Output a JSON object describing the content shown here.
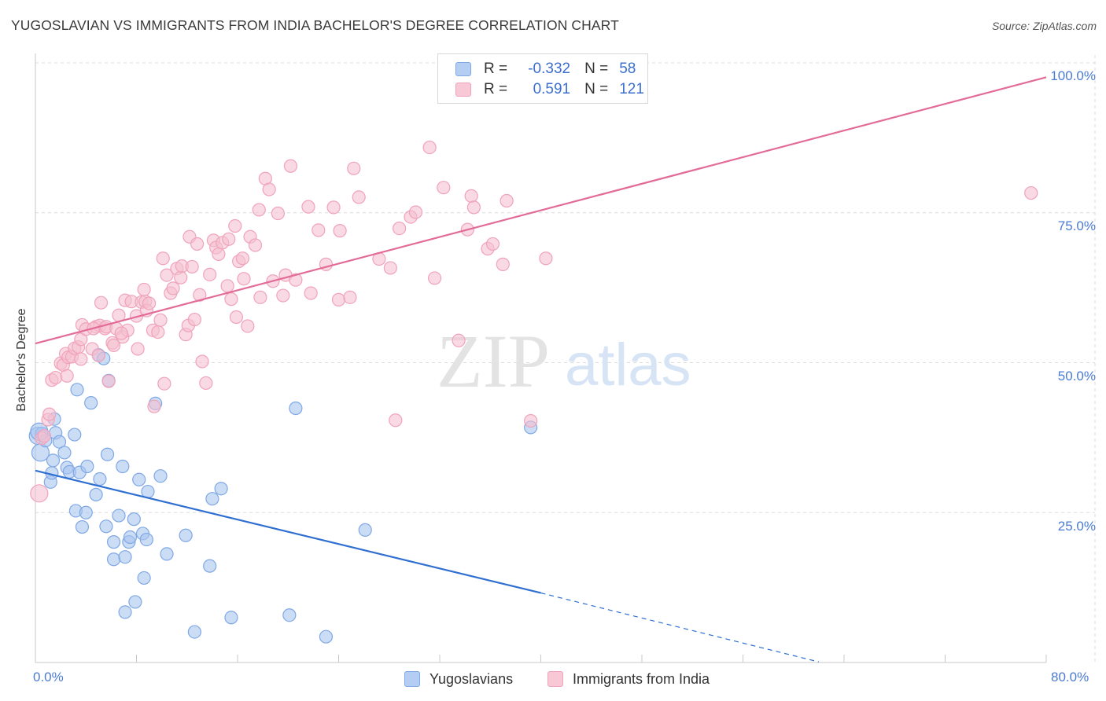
{
  "title": "YUGOSLAVIAN VS IMMIGRANTS FROM INDIA BACHELOR'S DEGREE CORRELATION CHART",
  "source": "Source: ZipAtlas.com",
  "watermark": {
    "zip": "ZIP",
    "atlas": "atlas"
  },
  "legend": {
    "rows": [
      {
        "r_label": "R =",
        "r_value": "-0.332",
        "n_label": "N =",
        "n_value": "58",
        "color": "#7fa8e6"
      },
      {
        "r_label": "R =",
        "r_value": "0.591",
        "n_label": "N =",
        "n_value": "121",
        "color": "#f3a6bf"
      }
    ]
  },
  "bottom_legend": {
    "yugoslavians": "Yugoslavians",
    "india": "Immigrants from India"
  },
  "colors": {
    "blue_fill": "#a9c5ef",
    "blue_stroke": "#7fa8e6",
    "blue_line": "#2f6fd1",
    "pink_fill": "#f5bfd0",
    "pink_stroke": "#f0a3bb",
    "pink_line": "#e36b97",
    "grid": "#dcdcdc",
    "axis_text": "#4a7bd4"
  },
  "chart_data": {
    "type": "scatter",
    "title": "YUGOSLAVIAN VS IMMIGRANTS FROM INDIA BACHELOR'S DEGREE CORRELATION CHART",
    "xlabel": "",
    "ylabel": "Bachelor's Degree",
    "xlim": [
      0,
      80
    ],
    "ylim": [
      0,
      100
    ],
    "x_tick_labels": [
      "0.0%",
      "80.0%"
    ],
    "y_tick_labels": [
      "25.0%",
      "50.0%",
      "75.0%",
      "100.0%"
    ],
    "y_ticks": [
      25,
      50,
      75,
      100
    ],
    "grid": true,
    "series": [
      {
        "name": "Yugoslavians",
        "trend": {
          "x": [
            0,
            40
          ],
          "y": [
            32.0,
            11.6
          ],
          "dashed_to": [
            62,
            0.1
          ]
        },
        "points": [
          [
            0.2,
            37.8
          ],
          [
            0.4,
            35.0
          ],
          [
            0.5,
            38.2
          ],
          [
            0.8,
            37.0
          ],
          [
            1.2,
            30.1
          ],
          [
            1.3,
            31.6
          ],
          [
            1.4,
            33.7
          ],
          [
            1.5,
            40.6
          ],
          [
            1.6,
            38.3
          ],
          [
            1.9,
            36.8
          ],
          [
            2.3,
            35.0
          ],
          [
            2.5,
            32.5
          ],
          [
            2.7,
            31.8
          ],
          [
            3.1,
            38.0
          ],
          [
            3.2,
            25.3
          ],
          [
            3.3,
            45.5
          ],
          [
            3.5,
            31.7
          ],
          [
            3.7,
            22.6
          ],
          [
            4.0,
            25.0
          ],
          [
            4.1,
            32.7
          ],
          [
            4.4,
            43.3
          ],
          [
            4.8,
            28.0
          ],
          [
            5.0,
            51.3
          ],
          [
            5.1,
            30.6
          ],
          [
            5.4,
            50.7
          ],
          [
            5.6,
            22.7
          ],
          [
            5.7,
            34.7
          ],
          [
            5.8,
            47.0
          ],
          [
            6.2,
            20.1
          ],
          [
            6.2,
            17.2
          ],
          [
            6.6,
            24.5
          ],
          [
            6.9,
            32.7
          ],
          [
            7.1,
            8.4
          ],
          [
            7.1,
            17.6
          ],
          [
            7.4,
            20.1
          ],
          [
            7.5,
            20.9
          ],
          [
            7.8,
            23.9
          ],
          [
            7.9,
            10.1
          ],
          [
            8.2,
            30.5
          ],
          [
            8.5,
            21.5
          ],
          [
            8.6,
            14.1
          ],
          [
            8.8,
            20.5
          ],
          [
            8.9,
            28.5
          ],
          [
            9.5,
            43.2
          ],
          [
            9.9,
            31.1
          ],
          [
            10.4,
            18.1
          ],
          [
            11.9,
            21.2
          ],
          [
            12.6,
            5.1
          ],
          [
            13.8,
            16.1
          ],
          [
            14.0,
            27.3
          ],
          [
            14.7,
            29.0
          ],
          [
            15.5,
            7.5
          ],
          [
            20.1,
            7.9
          ],
          [
            20.6,
            42.4
          ],
          [
            23.0,
            4.3
          ],
          [
            26.1,
            22.1
          ],
          [
            39.2,
            39.2
          ],
          [
            0.3,
            38.5
          ]
        ]
      },
      {
        "name": "Immigrants from India",
        "trend": {
          "x": [
            0,
            80
          ],
          "y": [
            53.2,
            97.6
          ]
        },
        "points": [
          [
            0.3,
            28.2
          ],
          [
            0.5,
            37.4
          ],
          [
            1.0,
            40.5
          ],
          [
            1.1,
            41.4
          ],
          [
            1.3,
            47.1
          ],
          [
            1.6,
            47.5
          ],
          [
            2.0,
            49.9
          ],
          [
            2.2,
            49.6
          ],
          [
            2.4,
            51.5
          ],
          [
            2.6,
            50.9
          ],
          [
            2.9,
            51.0
          ],
          [
            3.1,
            52.4
          ],
          [
            3.4,
            52.6
          ],
          [
            3.6,
            53.9
          ],
          [
            3.6,
            50.6
          ],
          [
            3.7,
            56.3
          ],
          [
            4.0,
            55.6
          ],
          [
            4.5,
            52.3
          ],
          [
            4.8,
            56.0
          ],
          [
            5.0,
            51.2
          ],
          [
            5.1,
            56.2
          ],
          [
            5.2,
            60.0
          ],
          [
            5.5,
            55.7
          ],
          [
            5.6,
            56.0
          ],
          [
            5.8,
            46.9
          ],
          [
            6.1,
            53.3
          ],
          [
            6.2,
            52.9
          ],
          [
            6.4,
            55.7
          ],
          [
            6.6,
            57.9
          ],
          [
            6.9,
            54.3
          ],
          [
            7.1,
            60.4
          ],
          [
            7.3,
            55.4
          ],
          [
            7.6,
            60.2
          ],
          [
            8.0,
            57.8
          ],
          [
            8.1,
            52.3
          ],
          [
            8.4,
            60.1
          ],
          [
            8.6,
            62.2
          ],
          [
            8.7,
            60.2
          ],
          [
            8.8,
            58.7
          ],
          [
            9.0,
            59.9
          ],
          [
            9.3,
            55.4
          ],
          [
            9.4,
            42.7
          ],
          [
            9.7,
            55.1
          ],
          [
            9.9,
            57.1
          ],
          [
            10.1,
            67.4
          ],
          [
            10.2,
            46.5
          ],
          [
            10.4,
            64.6
          ],
          [
            10.7,
            61.6
          ],
          [
            10.9,
            62.4
          ],
          [
            11.2,
            65.7
          ],
          [
            11.5,
            64.2
          ],
          [
            11.6,
            66.1
          ],
          [
            11.9,
            54.7
          ],
          [
            12.1,
            56.2
          ],
          [
            12.2,
            71.0
          ],
          [
            12.4,
            66.0
          ],
          [
            12.6,
            57.2
          ],
          [
            12.8,
            69.8
          ],
          [
            13.0,
            61.3
          ],
          [
            13.2,
            50.2
          ],
          [
            13.5,
            46.6
          ],
          [
            13.8,
            64.7
          ],
          [
            14.1,
            70.4
          ],
          [
            14.3,
            69.2
          ],
          [
            14.5,
            68.1
          ],
          [
            14.8,
            70.0
          ],
          [
            15.2,
            62.8
          ],
          [
            15.3,
            70.6
          ],
          [
            15.5,
            60.6
          ],
          [
            15.8,
            72.8
          ],
          [
            15.9,
            57.6
          ],
          [
            16.1,
            66.9
          ],
          [
            16.4,
            67.4
          ],
          [
            16.5,
            64.0
          ],
          [
            16.8,
            56.1
          ],
          [
            17.0,
            71.0
          ],
          [
            17.4,
            69.6
          ],
          [
            17.7,
            75.5
          ],
          [
            17.8,
            60.9
          ],
          [
            18.2,
            80.7
          ],
          [
            18.5,
            78.9
          ],
          [
            18.8,
            63.6
          ],
          [
            19.2,
            74.9
          ],
          [
            19.6,
            61.2
          ],
          [
            19.8,
            64.6
          ],
          [
            20.2,
            82.8
          ],
          [
            20.6,
            63.8
          ],
          [
            21.6,
            76.0
          ],
          [
            21.8,
            61.6
          ],
          [
            22.4,
            72.1
          ],
          [
            23.0,
            66.4
          ],
          [
            23.6,
            75.9
          ],
          [
            24.0,
            60.5
          ],
          [
            24.1,
            72.0
          ],
          [
            24.9,
            60.9
          ],
          [
            25.2,
            82.4
          ],
          [
            25.6,
            77.6
          ],
          [
            27.2,
            67.3
          ],
          [
            28.1,
            65.8
          ],
          [
            28.5,
            40.4
          ],
          [
            28.8,
            72.4
          ],
          [
            29.7,
            74.3
          ],
          [
            30.1,
            75.1
          ],
          [
            31.2,
            85.9
          ],
          [
            31.6,
            64.1
          ],
          [
            32.3,
            79.2
          ],
          [
            33.5,
            53.7
          ],
          [
            34.2,
            72.2
          ],
          [
            34.5,
            77.8
          ],
          [
            34.7,
            75.9
          ],
          [
            35.8,
            69.0
          ],
          [
            36.2,
            69.8
          ],
          [
            37.0,
            66.4
          ],
          [
            37.3,
            77.0
          ],
          [
            39.2,
            40.3
          ],
          [
            40.4,
            67.4
          ],
          [
            78.8,
            78.3
          ],
          [
            2.5,
            47.8
          ],
          [
            0.7,
            37.8
          ],
          [
            4.6,
            55.7
          ],
          [
            6.8,
            54.9
          ]
        ]
      }
    ]
  }
}
